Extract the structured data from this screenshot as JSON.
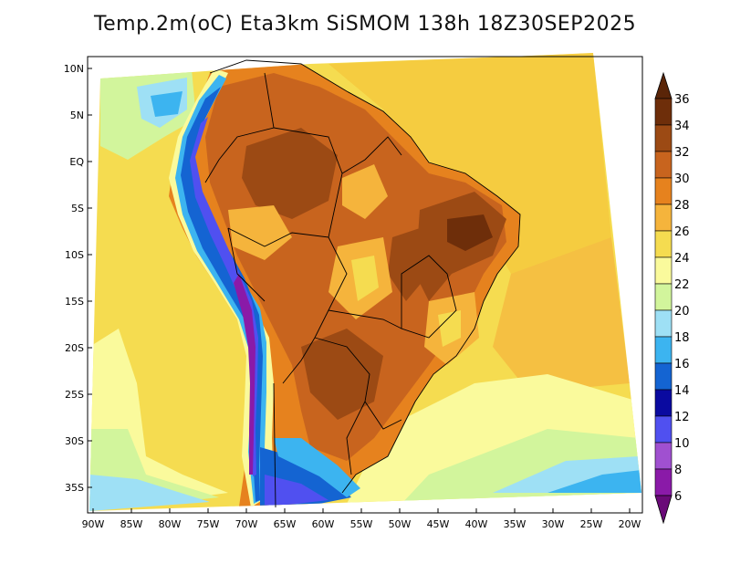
{
  "title": "Temp.2m(oC) Eta3km SiSMOM 138h 18Z30SEP2025",
  "lat_labels": [
    "10N",
    "5N",
    "EQ",
    "5S",
    "10S",
    "15S",
    "20S",
    "25S",
    "30S",
    "35S"
  ],
  "lon_labels": [
    "90W",
    "85W",
    "80W",
    "75W",
    "70W",
    "65W",
    "60W",
    "55W",
    "50W",
    "45W",
    "40W",
    "35W",
    "30W",
    "25W",
    "20W"
  ],
  "colorbar": {
    "labels": [
      "36",
      "34",
      "32",
      "30",
      "28",
      "26",
      "24",
      "22",
      "20",
      "18",
      "16",
      "14",
      "12",
      "10",
      "8",
      "6"
    ],
    "colors": [
      "#f2f2ff",
      "#f2f2ff"
    ]
  },
  "palette": {
    "c6": "#6a0a78",
    "c8": "#8a1aa8",
    "c10": "#a050d0",
    "c12": "#5050f0",
    "c14": "#0a0aa0",
    "c16": "#1464d2",
    "c18": "#3cb4f0",
    "c20": "#9ee0f5",
    "c22": "#d2f59c",
    "c24": "#fafa9c",
    "c26": "#f5dc50",
    "c28": "#f5b43c",
    "c30": "#e6821e",
    "c32": "#c8641e",
    "c34": "#9c4a14",
    "c36": "#6e2e0a"
  }
}
